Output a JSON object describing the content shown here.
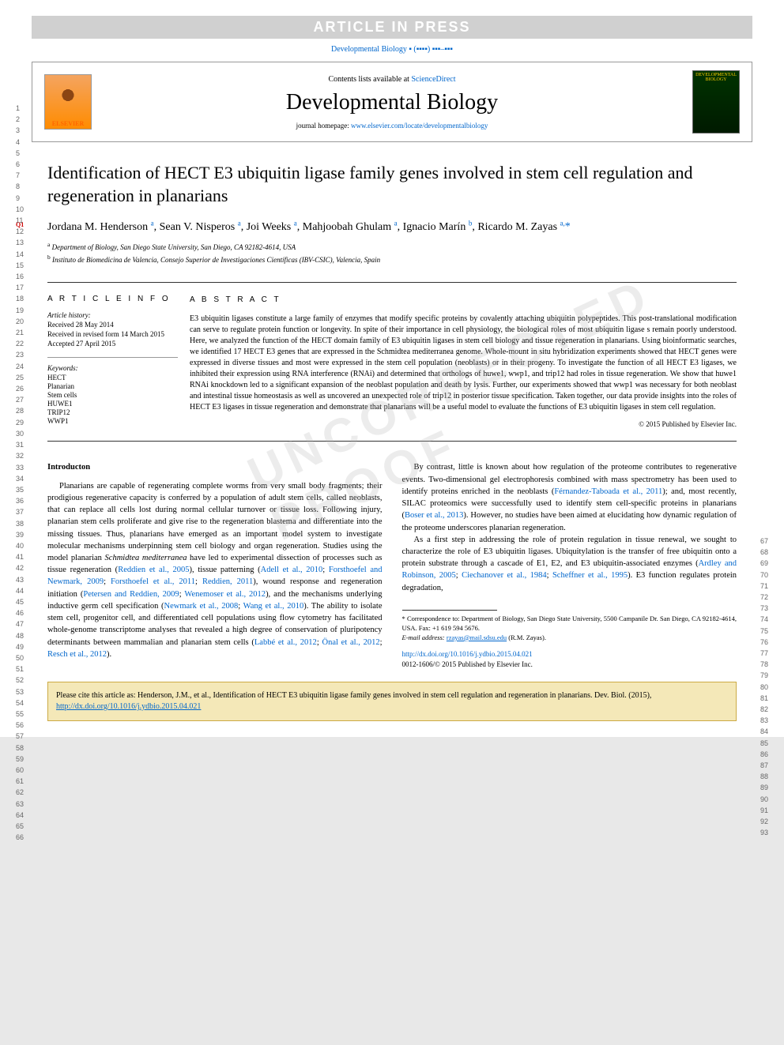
{
  "banner": "ARTICLE IN PRESS",
  "journal_ref": "Developmental Biology ▪ (▪▪▪▪) ▪▪▪–▪▪▪",
  "header": {
    "contents_text": "Contents lists available at ",
    "contents_link": "ScienceDirect",
    "journal_name": "Developmental Biology",
    "homepage_label": "journal homepage: ",
    "homepage_url": "www.elsevier.com/locate/developmentalbiology",
    "elsevier_label": "ELSEVIER",
    "cover_text": "DEVELOPMENTAL BIOLOGY"
  },
  "article": {
    "title": "Identification of HECT E3 ubiquitin ligase family genes involved in stem cell regulation and regeneration in planarians",
    "authors_html": "Jordana M. Henderson <sup>a</sup>, Sean V. Nisperos <sup>a</sup>, Joi Weeks <sup>a</sup>, Mahjoobah Ghulam <sup>a</sup>, Ignacio Marín <sup>b</sup>, Ricardo M. Zayas <sup>a,</sup>",
    "corr_marker": "*",
    "affiliations": [
      {
        "sup": "a",
        "text": "Department of Biology, San Diego State University, San Diego, CA 92182-4614, USA"
      },
      {
        "sup": "b",
        "text": "Instituto de Biomedicina de Valencia, Consejo Superior de Investigaciones Científicas (IBV-CSIC), Valencia, Spain"
      }
    ]
  },
  "info": {
    "heading": "A R T I C L E   I N F O",
    "history_label": "Article history:",
    "received": "Received 28 May 2014",
    "revised": "Received in revised form 14 March 2015",
    "accepted": "Accepted 27 April 2015",
    "keywords_label": "Keywords:",
    "keywords": [
      "HECT",
      "Planarian",
      "Stem cells",
      "HUWE1",
      "TRIP12",
      "WWP1"
    ]
  },
  "abstract": {
    "heading": "A B S T R A C T",
    "text": "E3 ubiquitin ligases constitute a large family of enzymes that modify specific proteins by covalently attaching ubiquitin polypeptides. This post-translational modification can serve to regulate protein function or longevity. In spite of their importance in cell physiology, the biological roles of most ubiquitin ligase s remain poorly understood. Here, we analyzed the function of the HECT domain family of E3 ubiquitin ligases in stem cell biology and tissue regeneration in planarians. Using bioinformatic searches, we identified 17 HECT E3 genes that are expressed in the Schmidtea mediterranea genome. Whole-mount in situ hybridization experiments showed that HECT genes were expressed in diverse tissues and most were expressed in the stem cell population (neoblasts) or in their progeny. To investigate the function of all HECT E3 ligases, we inhibited their expression using RNA interference (RNAi) and determined that orthologs of huwe1, wwp1, and trip12 had roles in tissue regeneration. We show that huwe1 RNAi knockdown led to a significant expansion of the neoblast population and death by lysis. Further, our experiments showed that wwp1 was necessary for both neoblast and intestinal tissue homeostasis as well as uncovered an unexpected role of trip12 in posterior tissue specification. Taken together, our data provide insights into the roles of HECT E3 ligases in tissue regeneration and demonstrate that planarians will be a useful model to evaluate the functions of E3 ubiquitin ligases in stem cell regulation.",
    "copyright": "© 2015 Published by Elsevier Inc."
  },
  "body": {
    "intro_heading": "Introducton",
    "p1": "Planarians are capable of regenerating complete worms from very small body fragments; their prodigious regenerative capacity is conferred by a population of adult stem cells, called neoblasts, that can replace all cells lost during normal cellular turnover or tissue loss. Following injury, planarian stem cells proliferate and give rise to the regeneration blastema and differentiate into the missing tissues. Thus, planarians have emerged as an important model system to investigate molecular mechanisms underpinning stem cell biology and organ regeneration. Studies using the model planarian ",
    "species1": "Schmidtea mediterranea",
    "p1b": " have led to experimental dissection of processes such as tissue regeneration (",
    "ref1": "Reddien et al., 2005",
    "p1c": "), tissue patterning (",
    "ref2": "Adell et al., 2010",
    "p1d": "; ",
    "ref3": "Forsthoefel and Newmark, 2009",
    "p1e": "; ",
    "ref4": "Forsthoefel et al., 2011",
    "p1f": "; ",
    "ref5": "Reddien, 2011",
    "p1g": "), wound response and regeneration initiation (",
    "ref6": "Petersen and Reddien, 2009",
    "p1h": "; ",
    "ref7": "Wenemoser et al., 2012",
    "p1i": "), and the mechanisms underlying inductive germ cell specification (",
    "ref8": "Newmark et al., 2008",
    "p1j": "; ",
    "ref9": "Wang et al., 2010",
    "p1k": "). The ability to isolate stem cell, progenitor cell, and differentiated cell populations using flow cytometry has facilitated whole-genome transcriptome analyses that revealed a high degree of conservation of pluripotency determinants between mammalian and planarian stem cells (",
    "ref10": "Labbé et al., 2012",
    "p1l": "; ",
    "ref11": "Önal et al., 2012",
    "p1m": "; ",
    "ref12": "Resch et al., 2012",
    "p1n": ").",
    "p2a": "By contrast, little is known about how regulation of the proteome contributes to regenerative events. Two-dimensional gel electrophoresis combined with mass spectrometry has been used to identify proteins enriched in the neoblasts (",
    "ref13": "Férnandez-Taboada et al., 2011",
    "p2b": "); and, most recently, SILAC proteomics were successfully used to identify stem cell-specific proteins in planarians (",
    "ref14": "Boser et al., 2013",
    "p2c": "). However, no studies have been aimed at elucidating how dynamic regulation of the proteome underscores planarian regeneration.",
    "p3a": "As a first step in addressing the role of protein regulation in tissue renewal, we sought to characterize the role of E3 ubiquitin ligases. Ubiquitylation is the transfer of free ubiquitin onto a protein substrate through a cascade of E1, E2, and E3 ubiquitin-associated enzymes (",
    "ref15": "Ardley and Robinson, 2005",
    "p3b": "; ",
    "ref16": "Ciechanover et al., 1984",
    "p3c": "; ",
    "ref17": "Scheffner et al., 1995",
    "p3d": "). E3 function regulates protein degradation,"
  },
  "footnotes": {
    "corr": "* Correspondence to: Department of Biology, San Diego State University, 5500 Campanile Dr. San Diego, CA 92182-4614, USA. Fax: +1 619 594 5676.",
    "email_label": "E-mail address: ",
    "email": "rzayas@mail.sdsu.edu",
    "email_suffix": " (R.M. Zayas)."
  },
  "doi": {
    "url": "http://dx.doi.org/10.1016/j.ydbio.2015.04.021",
    "issn": "0012-1606/© 2015 Published by Elsevier Inc."
  },
  "citation": {
    "text": "Please cite this article as: Henderson, J.M., et al., Identification of HECT E3 ubiquitin ligase family genes involved in stem cell regulation and regeneration in planarians. Dev. Biol. (2015), ",
    "url": "http://dx.doi.org/10.1016/j.ydbio.2015.04.021"
  },
  "watermark": "UNCORRECTED PROOF",
  "line_numbers_left_start": 1,
  "line_numbers_left_end": 66,
  "line_numbers_right_start": 67,
  "line_numbers_right_end": 93,
  "q_markers": [
    "Q1"
  ]
}
